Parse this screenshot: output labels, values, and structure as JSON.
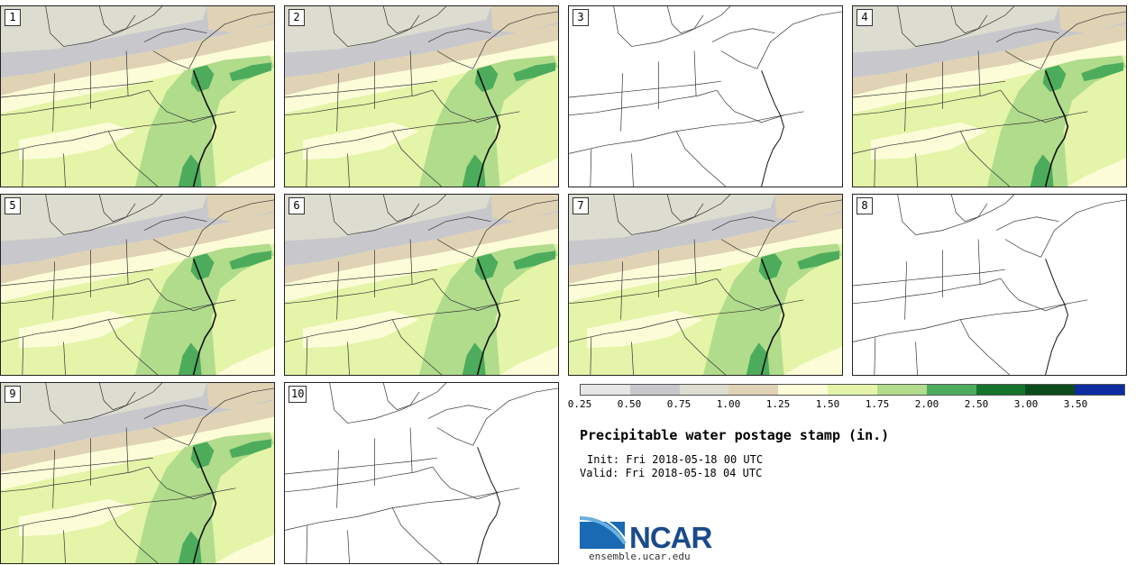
{
  "panels": [
    {
      "label": "1",
      "filled": true
    },
    {
      "label": "2",
      "filled": true
    },
    {
      "label": "3",
      "filled": false
    },
    {
      "label": "4",
      "filled": true
    },
    {
      "label": "5",
      "filled": true
    },
    {
      "label": "6",
      "filled": true
    },
    {
      "label": "7",
      "filled": true
    },
    {
      "label": "8",
      "filled": false
    },
    {
      "label": "9",
      "filled": true
    },
    {
      "label": "10",
      "filled": false
    }
  ],
  "legend": {
    "colors": [
      "#e6e6e6",
      "#c8c8cc",
      "#dcdcd0",
      "#e0d2b4",
      "#fcfcd8",
      "#e4f4a8",
      "#b0dc8c",
      "#4cac5c",
      "#14742c",
      "#0c4c1c",
      "#0c2ca0"
    ],
    "ticks": [
      "0.25",
      "0.50",
      "0.75",
      "1.00",
      "1.25",
      "1.50",
      "1.75",
      "2.00",
      "2.50",
      "3.00",
      "3.50"
    ]
  },
  "title": "Precipitable water postage stamp (in.)",
  "init": "Init: Fri 2018-05-18 00 UTC",
  "valid": "Valid: Fri 2018-05-18 04 UTC",
  "logo": {
    "text": "NCAR",
    "site": "ensemble.ucar.edu"
  }
}
